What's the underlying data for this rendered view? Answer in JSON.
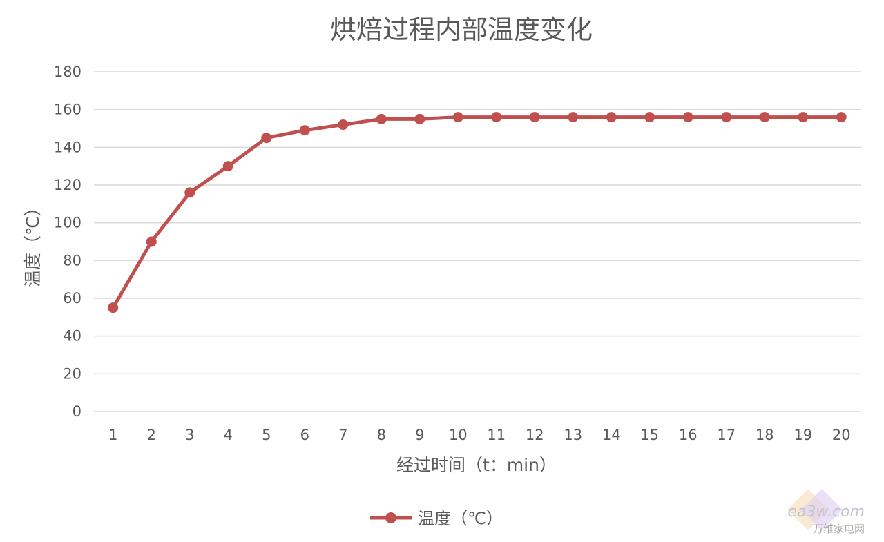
{
  "chart_data": {
    "type": "line",
    "title": "烘焙过程内部温度变化",
    "xlabel": "经过时间（t：min）",
    "ylabel": "温度（℃）",
    "categories": [
      "1",
      "2",
      "3",
      "4",
      "5",
      "6",
      "7",
      "8",
      "9",
      "10",
      "11",
      "12",
      "13",
      "14",
      "15",
      "16",
      "17",
      "18",
      "19",
      "20"
    ],
    "series": [
      {
        "name": "温度（℃）",
        "color": "#c0504d",
        "values": [
          55,
          90,
          116,
          130,
          145,
          149,
          152,
          155,
          155,
          156,
          156,
          156,
          156,
          156,
          156,
          156,
          156,
          156,
          156,
          156
        ]
      }
    ],
    "ylim": [
      0,
      180
    ],
    "yticks": [
      0,
      20,
      40,
      60,
      80,
      100,
      120,
      140,
      160,
      180
    ],
    "grid": true,
    "legend_position": "bottom-center"
  },
  "watermark": {
    "logo_text": "ea3w.com",
    "site_name": "万维家电网"
  }
}
